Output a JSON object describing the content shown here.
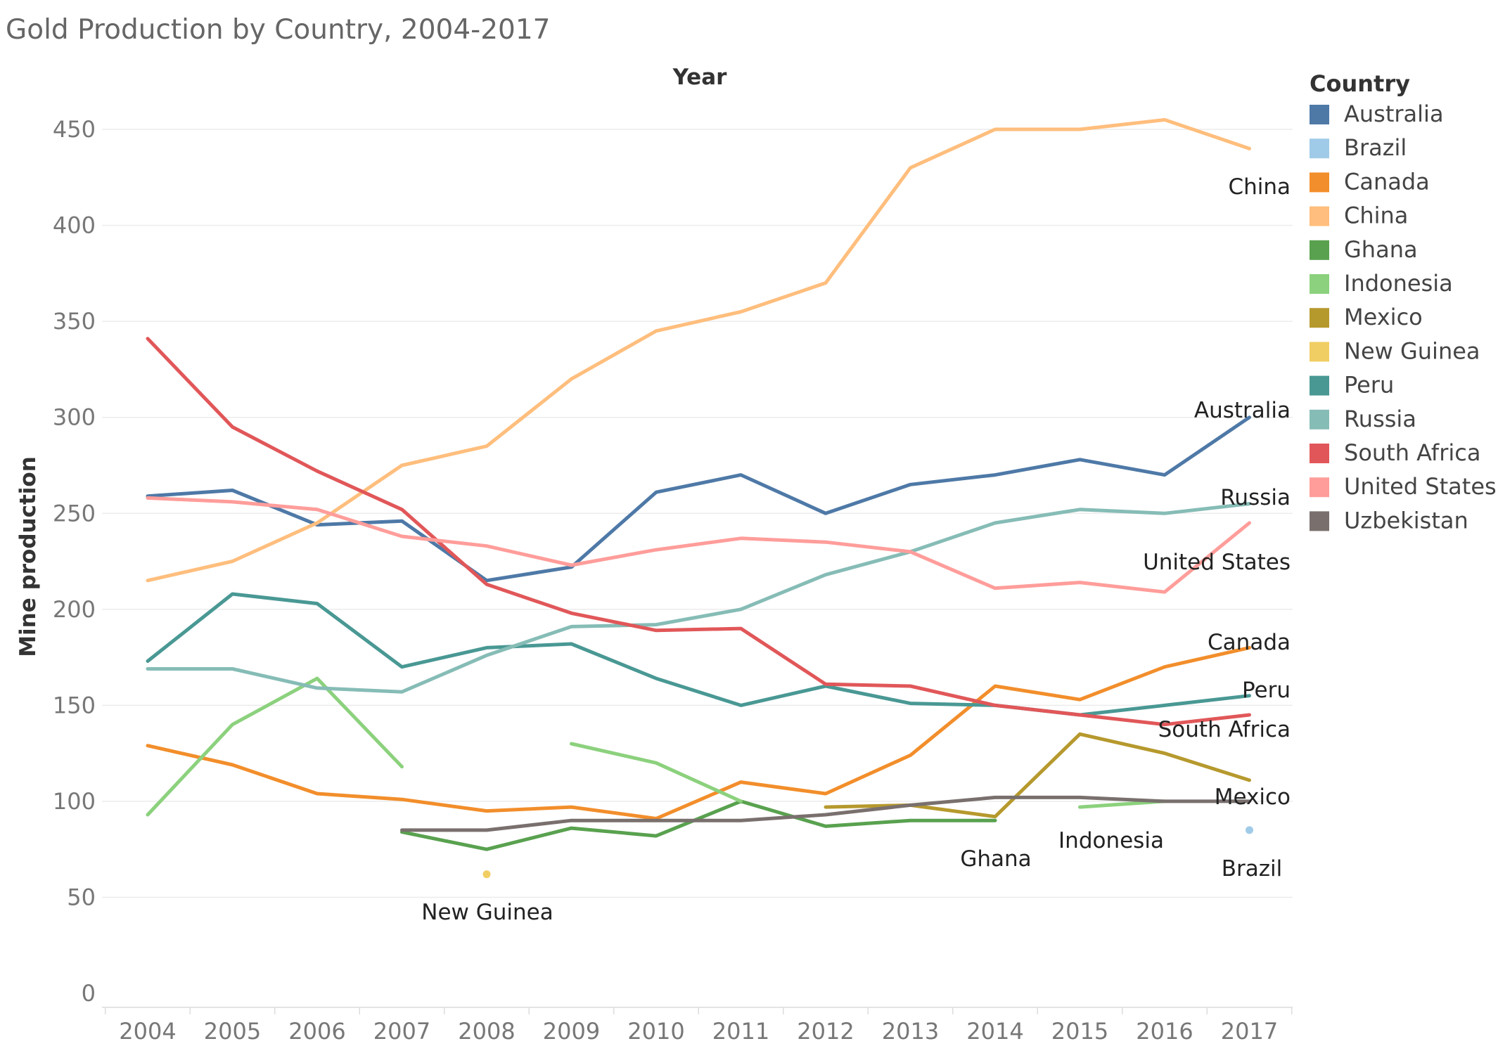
{
  "chart_data": {
    "type": "line",
    "title": "Gold Production by Country, 2004-2017",
    "xlabel": "Year",
    "ylabel": "Mine production",
    "x": [
      "2004",
      "2005",
      "2006",
      "2007",
      "2008",
      "2009",
      "2010",
      "2011",
      "2012",
      "2013",
      "2014",
      "2015",
      "2016",
      "2017"
    ],
    "y_ticks": [
      0,
      50,
      100,
      150,
      200,
      250,
      300,
      350,
      400,
      450
    ],
    "ylim": [
      0,
      472
    ],
    "grid": true,
    "legend": {
      "title": "Country",
      "position": "right"
    },
    "series": [
      {
        "name": "Australia",
        "color": "#4e79a7",
        "label": "Australia",
        "values": [
          259,
          262,
          244,
          246,
          215,
          222,
          261,
          270,
          250,
          265,
          270,
          278,
          270,
          300
        ]
      },
      {
        "name": "Brazil",
        "color": "#a0cbe8",
        "label": "Brazil",
        "values": [
          null,
          null,
          null,
          null,
          null,
          null,
          null,
          null,
          null,
          null,
          null,
          null,
          null,
          85
        ]
      },
      {
        "name": "Canada",
        "color": "#f28e2b",
        "label": "Canada",
        "values": [
          129,
          119,
          104,
          101,
          95,
          97,
          91,
          110,
          104,
          124,
          160,
          153,
          170,
          180
        ]
      },
      {
        "name": "China",
        "color": "#ffbe7d",
        "label": "China",
        "values": [
          215,
          225,
          245,
          275,
          285,
          320,
          345,
          355,
          370,
          430,
          450,
          450,
          455,
          440
        ]
      },
      {
        "name": "Ghana",
        "color": "#59a14f",
        "label": "Ghana",
        "values": [
          null,
          null,
          null,
          84,
          75,
          86,
          82,
          100,
          87,
          90,
          90,
          null,
          null,
          null
        ]
      },
      {
        "name": "Indonesia",
        "color": "#8cd17d",
        "label": "Indonesia",
        "values": [
          93,
          140,
          164,
          118,
          null,
          130,
          120,
          100,
          null,
          null,
          null,
          97,
          100,
          null
        ]
      },
      {
        "name": "Mexico",
        "color": "#b6992d",
        "label": "Mexico",
        "values": [
          null,
          null,
          null,
          null,
          null,
          null,
          null,
          null,
          97,
          98,
          92,
          135,
          125,
          111
        ]
      },
      {
        "name": "New Guinea",
        "color": "#f1ce63",
        "label": "New Guinea",
        "values": [
          null,
          null,
          null,
          null,
          62,
          null,
          null,
          null,
          null,
          null,
          null,
          null,
          null,
          null
        ]
      },
      {
        "name": "Peru",
        "color": "#499894",
        "label": "Peru",
        "values": [
          173,
          208,
          203,
          170,
          180,
          182,
          164,
          150,
          160,
          151,
          150,
          145,
          150,
          155
        ]
      },
      {
        "name": "Russia",
        "color": "#86bcb6",
        "label": "Russia",
        "values": [
          169,
          169,
          159,
          157,
          176,
          191,
          192,
          200,
          218,
          230,
          245,
          252,
          250,
          255
        ]
      },
      {
        "name": "South Africa",
        "color": "#e15759",
        "label": "South Africa",
        "values": [
          341,
          295,
          272,
          252,
          213,
          198,
          189,
          190,
          161,
          160,
          150,
          145,
          140,
          145
        ]
      },
      {
        "name": "United States",
        "color": "#ff9d9a",
        "label": "United States",
        "values": [
          258,
          256,
          252,
          238,
          233,
          223,
          231,
          237,
          235,
          230,
          211,
          214,
          209,
          245
        ]
      },
      {
        "name": "Uzbekistan",
        "color": "#79706e",
        "label": null,
        "values": [
          null,
          null,
          null,
          85,
          85,
          90,
          90,
          90,
          93,
          98,
          102,
          102,
          100,
          100
        ]
      }
    ]
  }
}
